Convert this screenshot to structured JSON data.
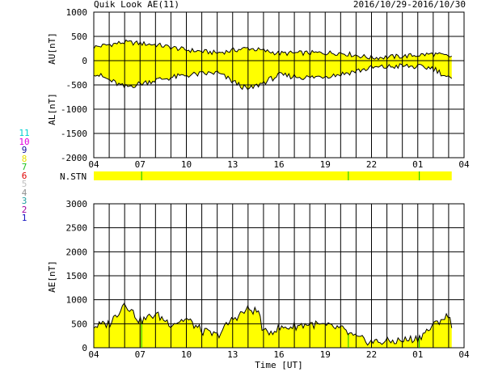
{
  "header": {
    "title": "Quik Look AE(11)",
    "date_range": "2016/10/29-2016/10/30"
  },
  "station_legend": [
    {
      "label": "11",
      "color": "#00d0d0"
    },
    {
      "label": "10",
      "color": "#e000e0"
    },
    {
      "label": "9",
      "color": "#1010a0"
    },
    {
      "label": "8",
      "color": "#e8e000"
    },
    {
      "label": "7",
      "color": "#20c020"
    },
    {
      "label": "6",
      "color": "#e00000"
    },
    {
      "label": "5",
      "color": "#c0c0c0"
    },
    {
      "label": "4",
      "color": "#909090"
    },
    {
      "label": "3",
      "color": "#20a0a0"
    },
    {
      "label": "2",
      "color": "#a000a0"
    },
    {
      "label": "1",
      "color": "#1010c0"
    }
  ],
  "colors": {
    "fill": "#ffff00",
    "marker": "#00c000",
    "trace": "#000000",
    "grid": "#000000"
  },
  "chart_data": [
    {
      "type": "area",
      "panel": "AU/AL",
      "ylabel_upper": "AU[nT]",
      "ylabel_lower": "AL[nT]",
      "ylim": [
        -2000,
        1000
      ],
      "yticks": [
        1000,
        500,
        0,
        -500,
        -1000,
        -1500,
        -2000
      ],
      "xticks": [
        "04",
        "07",
        "10",
        "13",
        "16",
        "19",
        "22",
        "01",
        "04"
      ],
      "x_hours": [
        4,
        6,
        8,
        10,
        12,
        14,
        16,
        18,
        20,
        22,
        24,
        26,
        27.2
      ],
      "series": [
        {
          "name": "AU",
          "values": [
            280,
            380,
            330,
            220,
            160,
            260,
            150,
            160,
            160,
            60,
            90,
            140,
            80
          ]
        },
        {
          "name": "AL",
          "values": [
            -250,
            -550,
            -400,
            -300,
            -250,
            -600,
            -300,
            -350,
            -280,
            -150,
            -110,
            -150,
            -400
          ]
        }
      ]
    },
    {
      "type": "bar",
      "panel": "N.STN",
      "label": "N.STN",
      "marker_hours": [
        7.1,
        20.5,
        25.1
      ]
    },
    {
      "type": "area",
      "panel": "AE",
      "ylabel": "AE[nT]",
      "xlabel": "Time [UT]",
      "ylim": [
        0,
        3000
      ],
      "yticks": [
        3000,
        2500,
        2000,
        1500,
        1000,
        500,
        0
      ],
      "xticks": [
        "04",
        "07",
        "10",
        "13",
        "16",
        "19",
        "22",
        "01",
        "04"
      ],
      "x_hours": [
        4,
        5,
        5.5,
        6,
        7,
        8,
        9,
        10,
        11,
        12,
        13,
        14,
        14.7,
        15,
        16,
        17,
        18,
        19,
        20,
        21,
        22,
        23,
        24,
        25,
        26,
        26.5,
        27,
        27.2
      ],
      "values": [
        450,
        500,
        700,
        950,
        550,
        700,
        500,
        600,
        350,
        250,
        600,
        800,
        750,
        300,
        400,
        450,
        500,
        450,
        400,
        200,
        120,
        130,
        150,
        200,
        450,
        600,
        650,
        500
      ],
      "markers": [
        7.1,
        20.5,
        25.1
      ]
    }
  ]
}
